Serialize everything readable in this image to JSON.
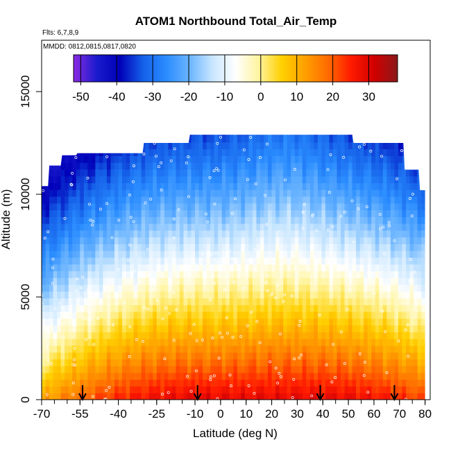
{
  "chart_data": {
    "type": "heatmap",
    "title": "ATOM1 Northbound Total_Air_Temp",
    "subtitle_flights": "Flts: 6,7,8,9",
    "subtitle_dates": "MMDD: 0812,0815,0817,0820",
    "xlabel": "Latitude (deg N)",
    "ylabel": "Altitude (m)",
    "xlim": [
      -70,
      82
    ],
    "ylim": [
      0,
      17500
    ],
    "x_ticks": [
      -70,
      -55,
      -40,
      -25,
      -10,
      0,
      10,
      20,
      30,
      40,
      50,
      60,
      70,
      80
    ],
    "x_tick_labels": [
      "-70",
      "-55",
      "-40",
      "-25",
      "-10",
      "0",
      "10",
      "20",
      "30",
      "40",
      "50",
      "60",
      "70",
      "80"
    ],
    "y_ticks": [
      0,
      5000,
      10000,
      15000
    ],
    "y_tick_labels": [
      "0",
      "5000",
      "10000",
      "15000"
    ],
    "colorbar": {
      "min": -52,
      "max": 38,
      "ticks": [
        -50,
        -40,
        -30,
        -20,
        -10,
        0,
        10,
        20,
        30
      ],
      "tick_labels": [
        "-50",
        "-40",
        "-30",
        "-20",
        "-10",
        "0",
        "10",
        "20",
        "30"
      ],
      "colors": [
        "#8a2be2",
        "#1a1acd",
        "#0000b8",
        "#1560e8",
        "#2a8cff",
        "#6ab4ff",
        "#c8e6ff",
        "#ffffff",
        "#fff4a0",
        "#ffd000",
        "#ffa000",
        "#ff6a00",
        "#ff1a00",
        "#d00000",
        "#8b1a1a"
      ]
    },
    "data_extent": {
      "lat_range": [
        -70,
        80
      ],
      "altitude_range": [
        0,
        12900
      ]
    },
    "flight_arrows_latitude": [
      -54,
      -9,
      39,
      68
    ],
    "field": "Total_Air_Temp"
  }
}
